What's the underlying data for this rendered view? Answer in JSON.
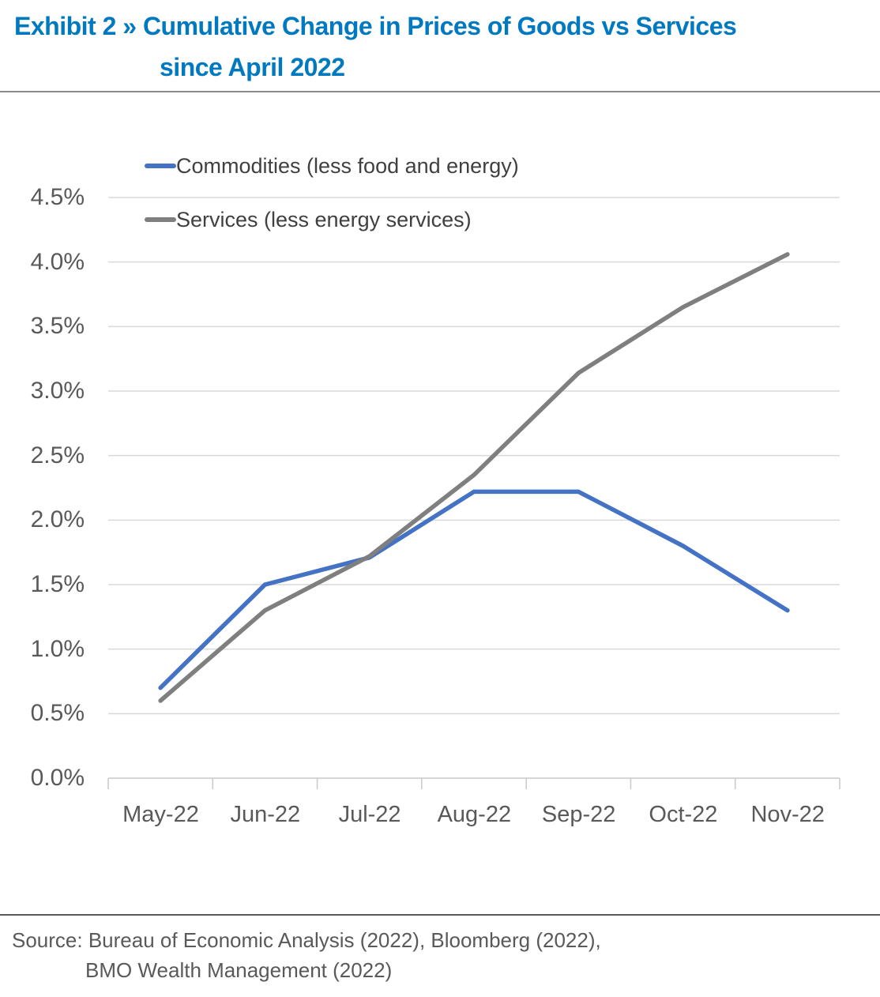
{
  "header": {
    "title_line1": "Exhibit 2 » Cumulative Change in Prices of Goods vs Services",
    "title_line2": "since April 2022",
    "title_color": "#0079c1"
  },
  "chart_data": {
    "type": "line",
    "title": "Cumulative Change in Prices of Goods vs Services since April 2022",
    "categories": [
      "May-22",
      "Jun-22",
      "Jul-22",
      "Aug-22",
      "Sep-22",
      "Oct-22",
      "Nov-22"
    ],
    "series": [
      {
        "name": "Commodities (less food and energy)",
        "color": "#4472c4",
        "values": [
          0.7,
          1.5,
          1.71,
          2.22,
          2.22,
          1.8,
          1.3
        ]
      },
      {
        "name": "Services (less energy services)",
        "color": "#7f7f7f",
        "values": [
          0.6,
          1.3,
          1.72,
          2.35,
          3.14,
          3.65,
          4.06
        ]
      }
    ],
    "y_axis": {
      "min": 0,
      "max": 4.5,
      "step": 0.5,
      "tick_labels": [
        "0.0%",
        "0.5%",
        "1.0%",
        "1.5%",
        "2.0%",
        "2.5%",
        "3.0%",
        "3.5%",
        "4.0%",
        "4.5%"
      ]
    },
    "grid": true,
    "gridline_color": "#d9d9d9",
    "axis_color": "#c9c9c9",
    "legend_position": "inside-top-left"
  },
  "footer": {
    "source_line1": "Source: Bureau of Economic Analysis (2022), Bloomberg (2022),",
    "source_line2": "BMO Wealth Management (2022)"
  }
}
